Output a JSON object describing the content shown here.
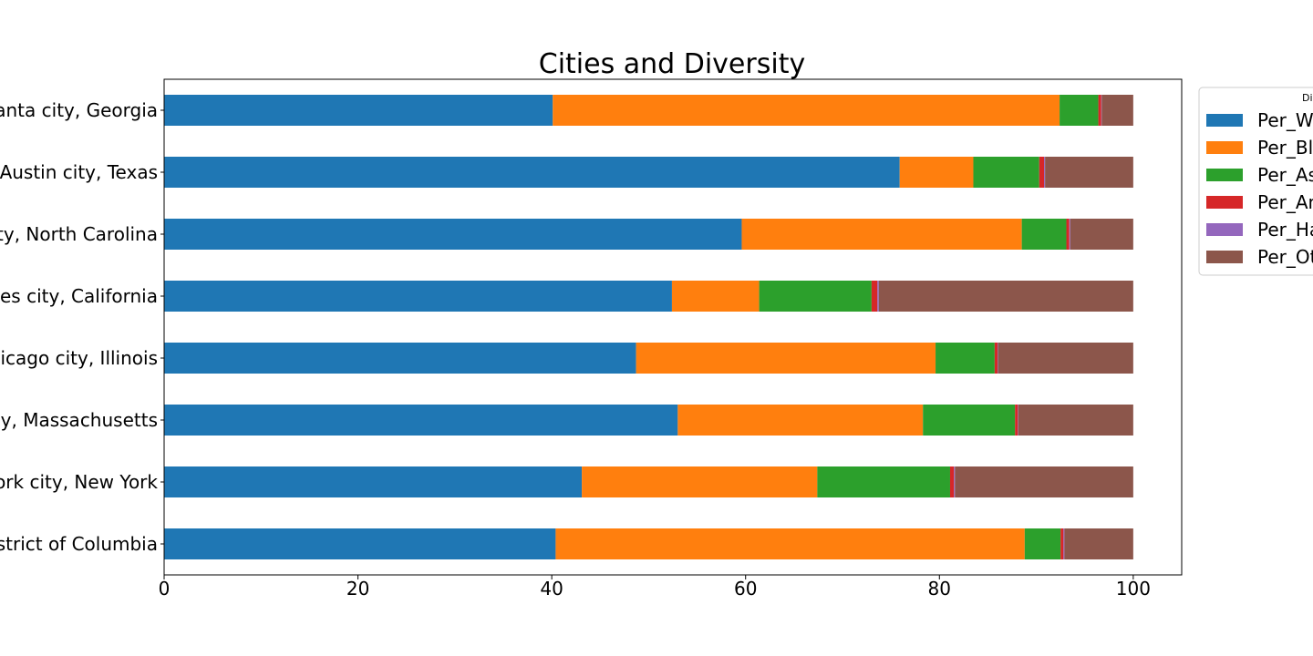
{
  "chart_data": {
    "type": "bar",
    "orientation": "horizontal",
    "stacked": true,
    "title": "Cities and Diversity",
    "xlabel": "",
    "ylabel": "",
    "xlim": [
      0,
      105
    ],
    "x_ticks": [
      0,
      20,
      40,
      60,
      80,
      100
    ],
    "grid": false,
    "legend": {
      "title": "Di",
      "position": "upper-right-outside",
      "entries": [
        "Per_W",
        "Per_Bl",
        "Per_As",
        "Per_An",
        "Per_Ha",
        "Per_Ot"
      ]
    },
    "categories": [
      "anta city, Georgia",
      "Austin city, Texas",
      "ty, North Carolina",
      "es city, California",
      "icago city, Illinois",
      "y, Massachusetts",
      "ork city, New York",
      "strict of Columbia"
    ],
    "series": [
      {
        "name": "Per_W",
        "color": "#1f77b4",
        "values": [
          40.1,
          75.9,
          59.6,
          52.4,
          48.7,
          53.0,
          43.1,
          40.4
        ]
      },
      {
        "name": "Per_Bl",
        "color": "#ff7f0e",
        "values": [
          52.3,
          7.6,
          28.9,
          9.0,
          30.9,
          25.3,
          24.3,
          48.4
        ]
      },
      {
        "name": "Per_As",
        "color": "#2ca02c",
        "values": [
          4.0,
          6.8,
          4.6,
          11.6,
          6.1,
          9.5,
          13.7,
          3.7
        ]
      },
      {
        "name": "Per_An",
        "color": "#d62728",
        "values": [
          0.3,
          0.5,
          0.3,
          0.6,
          0.3,
          0.3,
          0.4,
          0.3
        ]
      },
      {
        "name": "Per_Ha",
        "color": "#9467bd",
        "values": [
          0.05,
          0.1,
          0.1,
          0.15,
          0.05,
          0.05,
          0.1,
          0.1
        ]
      },
      {
        "name": "Per_Ot",
        "color": "#8c564b",
        "values": [
          3.25,
          9.1,
          6.5,
          26.25,
          13.95,
          11.85,
          18.4,
          7.1
        ]
      }
    ]
  }
}
